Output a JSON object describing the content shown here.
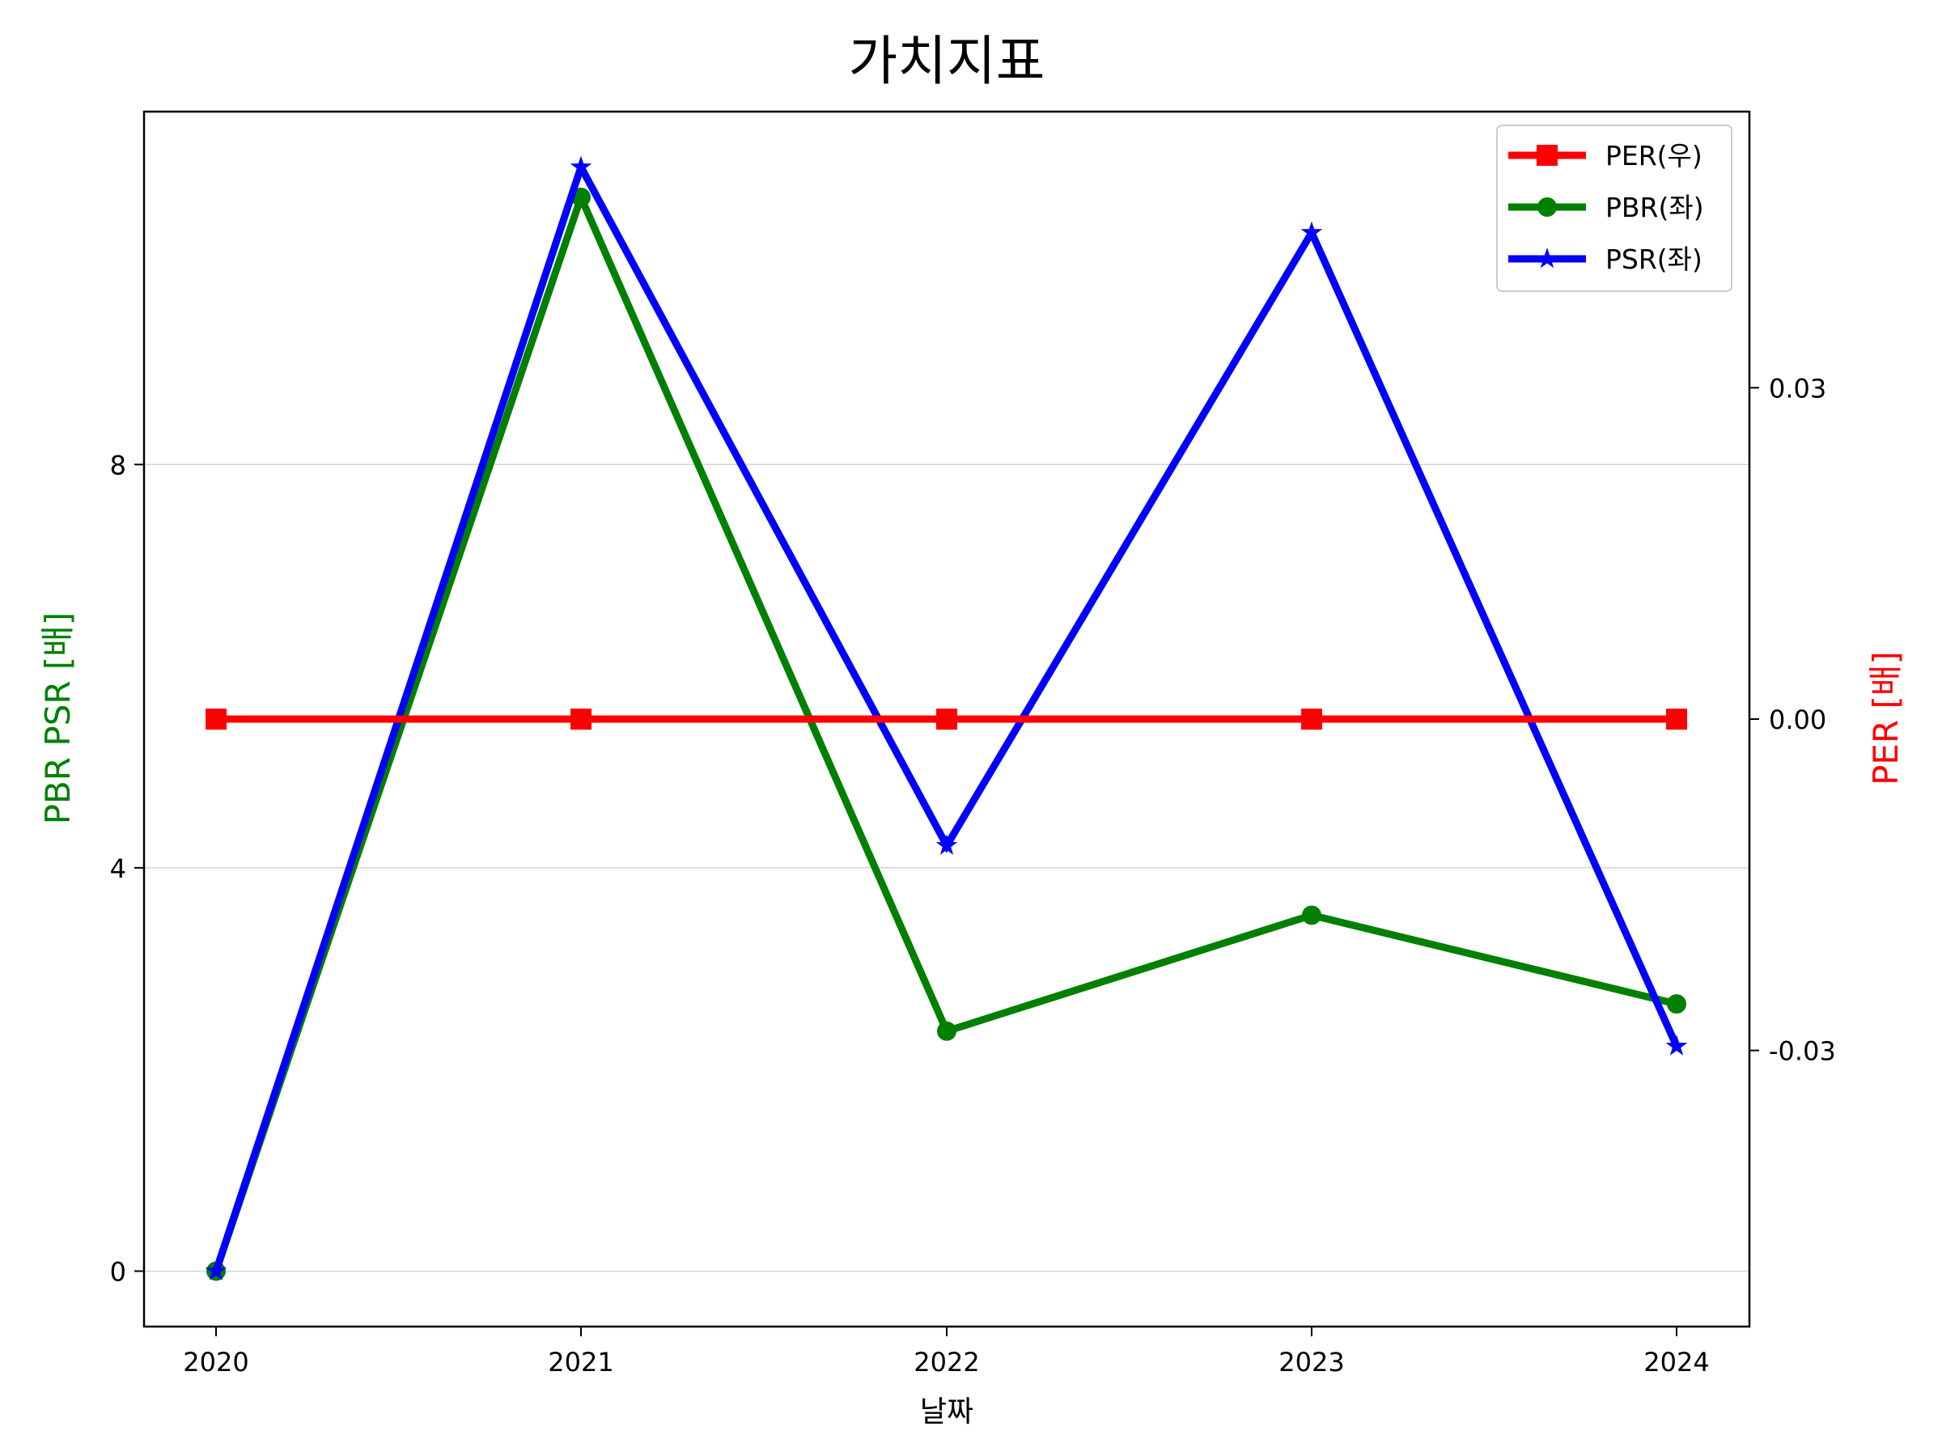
{
  "chart_data": {
    "type": "line",
    "title": "가치지표",
    "xlabel": "날짜",
    "ylabel_left": "PBR PSR [배]",
    "ylabel_right": "PER [배]",
    "categories": [
      "2020",
      "2021",
      "2022",
      "2023",
      "2024"
    ],
    "y_left_ticks": [
      "0",
      "4",
      "8"
    ],
    "y_left_range": [
      -0.55,
      11.5
    ],
    "y_right_ticks": [
      "-0.03",
      "0.00",
      "0.03"
    ],
    "y_right_range": [
      -0.055,
      0.055
    ],
    "grid": "horizontal (left axis)",
    "legend_position": "top-right",
    "series": [
      {
        "name": "PER(우)",
        "axis": "right",
        "color": "#ff0000",
        "marker": "square",
        "values": [
          0,
          0,
          0,
          0,
          0
        ]
      },
      {
        "name": "PBR(좌)",
        "axis": "left",
        "color": "#008000",
        "marker": "circle",
        "values": [
          0,
          10.65,
          2.38,
          3.53,
          2.65
        ]
      },
      {
        "name": "PSR(좌)",
        "axis": "left",
        "color": "#0000ff",
        "marker": "star",
        "values": [
          0,
          10.95,
          4.22,
          10.3,
          2.23
        ]
      }
    ]
  }
}
